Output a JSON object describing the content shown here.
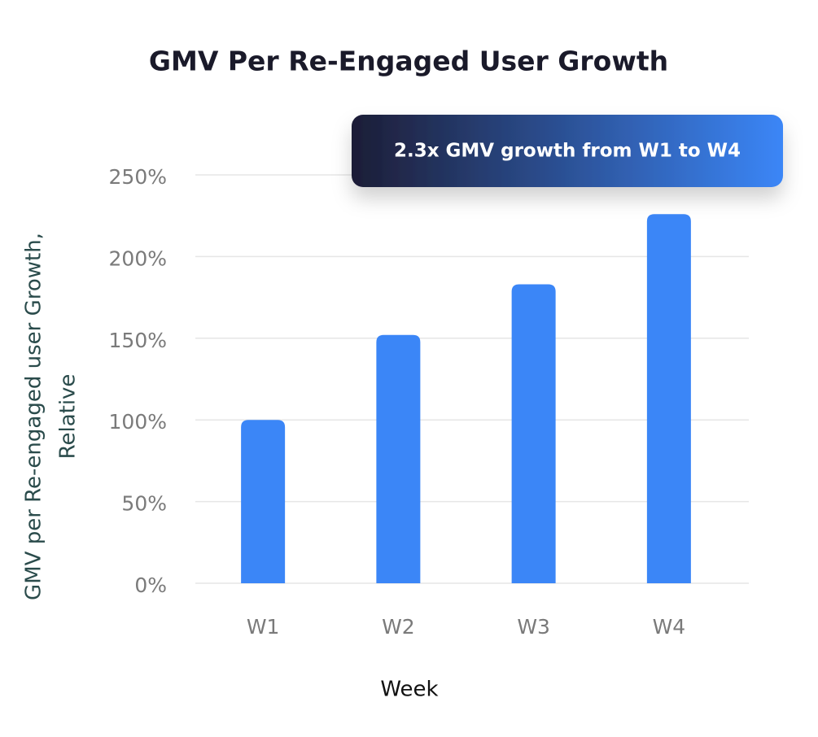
{
  "chart_data": {
    "type": "bar",
    "title": "GMV Per Re-Engaged User Growth",
    "annotation": "2.3x GMV growth from W1 to W4",
    "x_label": "Week",
    "y_label": [
      "GMV per Re-engaged user Growth,",
      "Relative"
    ],
    "categories": [
      "W1",
      "W2",
      "W3",
      "W4"
    ],
    "values": [
      100,
      152,
      183,
      226
    ],
    "color": "#3b86f7",
    "ylim": [
      0,
      250
    ],
    "yticks": [
      {
        "value": 0,
        "label": "0%"
      },
      {
        "value": 50,
        "label": "50%"
      },
      {
        "value": 100,
        "label": "100%"
      },
      {
        "value": 150,
        "label": "150%"
      },
      {
        "value": 200,
        "label": "200%"
      },
      {
        "value": 250,
        "label": "250%"
      }
    ],
    "grid": true
  }
}
